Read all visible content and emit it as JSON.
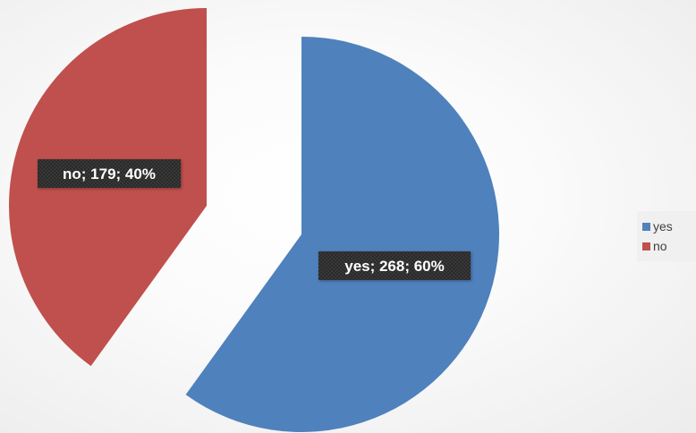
{
  "chart_data": {
    "type": "pie",
    "title": "",
    "categories": [
      "yes",
      "no"
    ],
    "values": [
      268,
      179
    ],
    "percentages": [
      "60%",
      "40%"
    ],
    "data_labels": [
      "yes; 268; 60%",
      "no; 179; 40%"
    ],
    "colors": [
      "#4f81bd",
      "#c0504d"
    ],
    "exploded": true,
    "legend_position": "right"
  },
  "legend": {
    "items": [
      {
        "label": "yes",
        "color": "#4f81bd"
      },
      {
        "label": "no",
        "color": "#c0504d"
      }
    ]
  }
}
